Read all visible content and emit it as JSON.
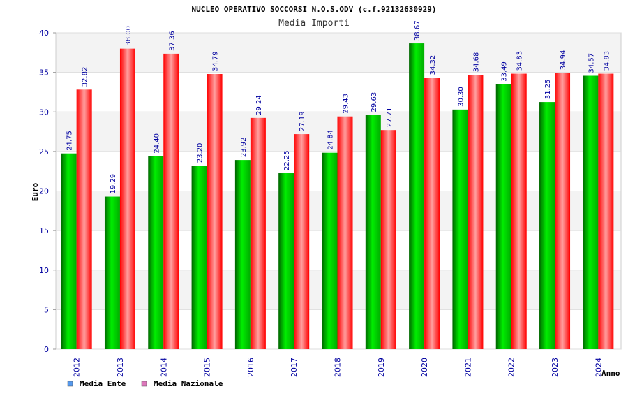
{
  "chart_data": {
    "type": "bar",
    "title": "NUCLEO OPERATIVO SOCCORSI N.O.S.ODV (c.f.92132630929)",
    "subtitle": "Media Importi",
    "xlabel": "Anno",
    "ylabel": "Euro",
    "ylim": [
      0,
      40
    ],
    "yticks": [
      "0",
      "5",
      "10",
      "15",
      "20",
      "25",
      "30",
      "35",
      "40"
    ],
    "categories": [
      "2012",
      "2013",
      "2014",
      "2015",
      "2016",
      "2017",
      "2018",
      "2019",
      "2020",
      "2021",
      "2022",
      "2023",
      "2024"
    ],
    "series": [
      {
        "name": "Media Ente",
        "color": "#00cc00",
        "legend_color": "#5599ee",
        "values": [
          24.75,
          19.29,
          24.4,
          23.2,
          23.92,
          22.25,
          24.84,
          29.63,
          38.67,
          30.3,
          33.49,
          31.25,
          34.57
        ],
        "labels": [
          "24.75",
          "19.29",
          "24.40",
          "23.20",
          "23.92",
          "22.25",
          "24.84",
          "29.63",
          "38.67",
          "30.30",
          "33.49",
          "31.25",
          "34.57"
        ]
      },
      {
        "name": "Media Nazionale",
        "color": "#ff1a1a",
        "legend_color": "#dd77bb",
        "values": [
          32.82,
          38.0,
          37.36,
          34.79,
          29.24,
          27.19,
          29.43,
          27.71,
          34.32,
          34.68,
          34.83,
          34.94,
          34.83
        ],
        "labels": [
          "32.82",
          "38.00",
          "37.36",
          "34.79",
          "29.24",
          "27.19",
          "29.43",
          "27.71",
          "34.32",
          "34.68",
          "34.83",
          "34.94",
          "34.83"
        ]
      }
    ],
    "grid": true,
    "legend_position": "bottom-left"
  }
}
